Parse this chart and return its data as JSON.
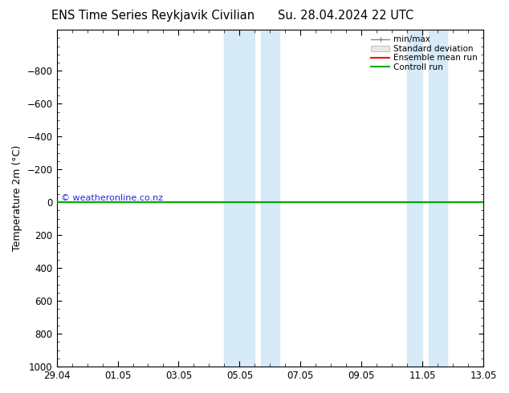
{
  "title_left": "ENS Time Series Reykjavik Civilian",
  "title_right": "Su. 28.04.2024 22 UTC",
  "ylabel": "Temperature 2m (°C)",
  "ylim_bottom": 1000,
  "ylim_top": -1050,
  "yticks": [
    -800,
    -600,
    -400,
    -200,
    0,
    200,
    400,
    600,
    800,
    1000
  ],
  "x_start": 0.0,
  "x_end": 14.0,
  "xtick_labels": [
    "29.04",
    "01.05",
    "03.05",
    "05.05",
    "07.05",
    "09.05",
    "11.05",
    "13.05"
  ],
  "xtick_positions": [
    0,
    2,
    4,
    6,
    8,
    10,
    12,
    14
  ],
  "shaded_bands": [
    [
      5.5,
      6.5
    ],
    [
      6.7,
      7.3
    ],
    [
      11.5,
      12.0
    ],
    [
      12.2,
      12.8
    ]
  ],
  "green_line_y": 0,
  "watermark": "© weatheronline.co.nz",
  "bg_color": "#ffffff",
  "shade_color": "#d6eaf8",
  "green_color": "#00aa00",
  "red_color": "#ff0000",
  "legend_items": [
    "min/max",
    "Standard deviation",
    "Ensemble mean run",
    "Controll run"
  ],
  "title_fontsize": 10.5,
  "label_fontsize": 9,
  "tick_fontsize": 8.5
}
